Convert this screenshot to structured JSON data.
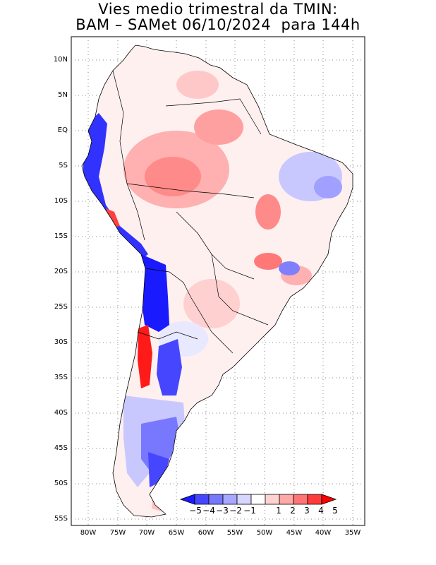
{
  "title": {
    "line1": "Vies medio trimestral da TMIN:",
    "line2": "BAM – SAMet 06/10/2024  para 144h"
  },
  "axes": {
    "lat_labels": [
      "10N",
      "5N",
      "EQ",
      "5S",
      "10S",
      "15S",
      "20S",
      "25S",
      "30S",
      "35S",
      "40S",
      "45S",
      "50S",
      "55S"
    ],
    "lon_labels": [
      "80W",
      "75W",
      "70W",
      "65W",
      "60W",
      "55W",
      "50W",
      "45W",
      "40W",
      "35W"
    ]
  },
  "colorbar": {
    "labels": [
      "−5",
      "−4",
      "−3",
      "−2",
      "−1",
      "1",
      "2",
      "3",
      "4",
      "5"
    ],
    "colors": [
      "#1a1aff",
      "#4646ff",
      "#7878ff",
      "#a8a8ff",
      "#d6d6ff",
      "#ffffff",
      "#ffd2d2",
      "#ffa8a8",
      "#ff7474",
      "#ff3c3c",
      "#ff0000"
    ]
  }
}
